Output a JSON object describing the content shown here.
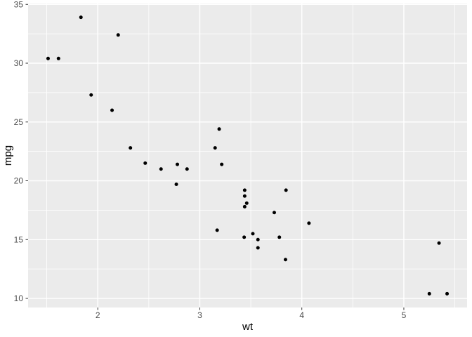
{
  "figure": {
    "type": "ggplot-scatterplot",
    "background": "#FFFFFF"
  },
  "chart_data": {
    "type": "scatter",
    "title": "",
    "xlabel": "wt",
    "ylabel": "mpg",
    "xlim": [
      1.317,
      5.62
    ],
    "ylim": [
      9.225,
      35.075
    ],
    "x_major_ticks": [
      2,
      3,
      4,
      5
    ],
    "x_minor_ticks": [
      1.5,
      2.5,
      3.5,
      4.5,
      5.5
    ],
    "y_major_ticks": [
      10,
      15,
      20,
      25,
      30,
      35
    ],
    "y_minor_ticks": [
      12.5,
      17.5,
      22.5,
      27.5,
      32.5
    ],
    "grid": "major and minor white lines on gray panel",
    "legend_position": "none",
    "points": [
      {
        "wt": 2.62,
        "mpg": 21.0
      },
      {
        "wt": 2.875,
        "mpg": 21.0
      },
      {
        "wt": 2.32,
        "mpg": 22.8
      },
      {
        "wt": 3.215,
        "mpg": 21.4
      },
      {
        "wt": 3.44,
        "mpg": 18.7
      },
      {
        "wt": 3.46,
        "mpg": 18.1
      },
      {
        "wt": 3.57,
        "mpg": 14.3
      },
      {
        "wt": 3.19,
        "mpg": 24.4
      },
      {
        "wt": 3.15,
        "mpg": 22.8
      },
      {
        "wt": 3.44,
        "mpg": 19.2
      },
      {
        "wt": 3.44,
        "mpg": 17.8
      },
      {
        "wt": 4.07,
        "mpg": 16.4
      },
      {
        "wt": 3.73,
        "mpg": 17.3
      },
      {
        "wt": 3.78,
        "mpg": 15.2
      },
      {
        "wt": 5.25,
        "mpg": 10.4
      },
      {
        "wt": 5.424,
        "mpg": 10.4
      },
      {
        "wt": 5.345,
        "mpg": 14.7
      },
      {
        "wt": 2.2,
        "mpg": 32.4
      },
      {
        "wt": 1.615,
        "mpg": 30.4
      },
      {
        "wt": 1.835,
        "mpg": 33.9
      },
      {
        "wt": 2.465,
        "mpg": 21.5
      },
      {
        "wt": 3.52,
        "mpg": 15.5
      },
      {
        "wt": 3.435,
        "mpg": 15.2
      },
      {
        "wt": 3.84,
        "mpg": 13.3
      },
      {
        "wt": 3.845,
        "mpg": 19.2
      },
      {
        "wt": 1.935,
        "mpg": 27.3
      },
      {
        "wt": 2.14,
        "mpg": 26.0
      },
      {
        "wt": 1.513,
        "mpg": 30.4
      },
      {
        "wt": 3.17,
        "mpg": 15.8
      },
      {
        "wt": 2.77,
        "mpg": 19.7
      },
      {
        "wt": 3.57,
        "mpg": 15.0
      },
      {
        "wt": 2.78,
        "mpg": 21.4
      }
    ],
    "colors": {
      "panel_background": "#EBEBEB",
      "grid_line": "#FFFFFF",
      "point": "#000000",
      "tick_mark": "#333333",
      "tick_label": "#4D4D4D",
      "axis_title": "#000000"
    }
  }
}
